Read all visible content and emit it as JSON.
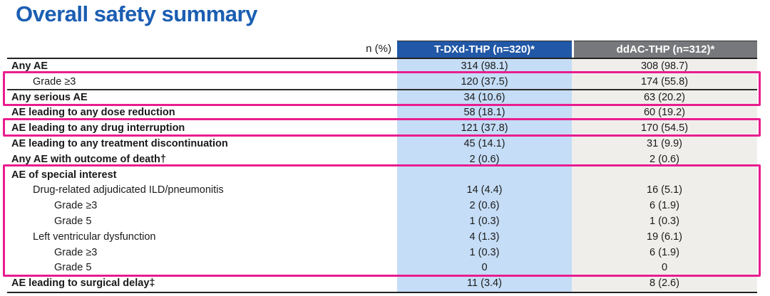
{
  "title": "Overall safety summary",
  "colors": {
    "title_blue": "#1b5eb2",
    "col1_header_bg": "#2158a7",
    "col2_header_bg": "#77787b",
    "col1_bg": "#c5ddf6",
    "col2_bg": "#f0eeeb",
    "highlight_magenta": "#e91c8f"
  },
  "table": {
    "unit_label": "n (%)",
    "columns": [
      "T-DXd-THP (n=320)*",
      "ddAC-THP (n=312)*"
    ],
    "rows": [
      {
        "label": "Any AE",
        "indent": 0,
        "bold": true,
        "tdxd": "314 (98.1)",
        "ddac": "308 (98.7)"
      },
      {
        "label": "Grade ≥3",
        "indent": 1,
        "bold": false,
        "tdxd": "120 (37.5)",
        "ddac": "174 (55.8)",
        "rule_below": true
      },
      {
        "label": "Any serious AE",
        "indent": 0,
        "bold": true,
        "tdxd": "34 (10.6)",
        "ddac": "63 (20.2)"
      },
      {
        "label": "AE leading to any dose reduction",
        "indent": 0,
        "bold": true,
        "tdxd": "58 (18.1)",
        "ddac": "60 (19.2)"
      },
      {
        "label": "AE leading to any drug interruption",
        "indent": 0,
        "bold": true,
        "tdxd": "121 (37.8)",
        "ddac": "170 (54.5)"
      },
      {
        "label": "AE leading to any treatment discontinuation",
        "indent": 0,
        "bold": true,
        "tdxd": "45 (14.1)",
        "ddac": "31 (9.9)"
      },
      {
        "label": "Any AE with outcome of death†",
        "indent": 0,
        "bold": true,
        "tdxd": "2 (0.6)",
        "ddac": "2 (0.6)"
      },
      {
        "label": "AE of special interest",
        "indent": 0,
        "bold": true,
        "tdxd": "",
        "ddac": ""
      },
      {
        "label": "Drug-related adjudicated ILD/pneumonitis",
        "indent": 1,
        "bold": false,
        "tdxd": "14 (4.4)",
        "ddac": "16 (5.1)"
      },
      {
        "label": "Grade ≥3",
        "indent": 2,
        "bold": false,
        "tdxd": "2 (0.6)",
        "ddac": "6 (1.9)"
      },
      {
        "label": "Grade 5",
        "indent": 2,
        "bold": false,
        "tdxd": "1 (0.3)",
        "ddac": "1 (0.3)"
      },
      {
        "label": "Left ventricular dysfunction",
        "indent": 1,
        "bold": false,
        "tdxd": "4 (1.3)",
        "ddac": "19 (6.1)"
      },
      {
        "label": "Grade ≥3",
        "indent": 2,
        "bold": false,
        "tdxd": "1 (0.3)",
        "ddac": "6 (1.9)"
      },
      {
        "label": "Grade 5",
        "indent": 2,
        "bold": false,
        "tdxd": "0",
        "ddac": "0"
      },
      {
        "label": "AE leading to surgical delay‡",
        "indent": 0,
        "bold": true,
        "tdxd": "11 (3.4)",
        "ddac": "8 (2.6)"
      }
    ],
    "highlights": [
      {
        "from_row": 1,
        "to_row": 2
      },
      {
        "from_row": 4,
        "to_row": 4
      },
      {
        "from_row": 7,
        "to_row": 13
      }
    ]
  }
}
